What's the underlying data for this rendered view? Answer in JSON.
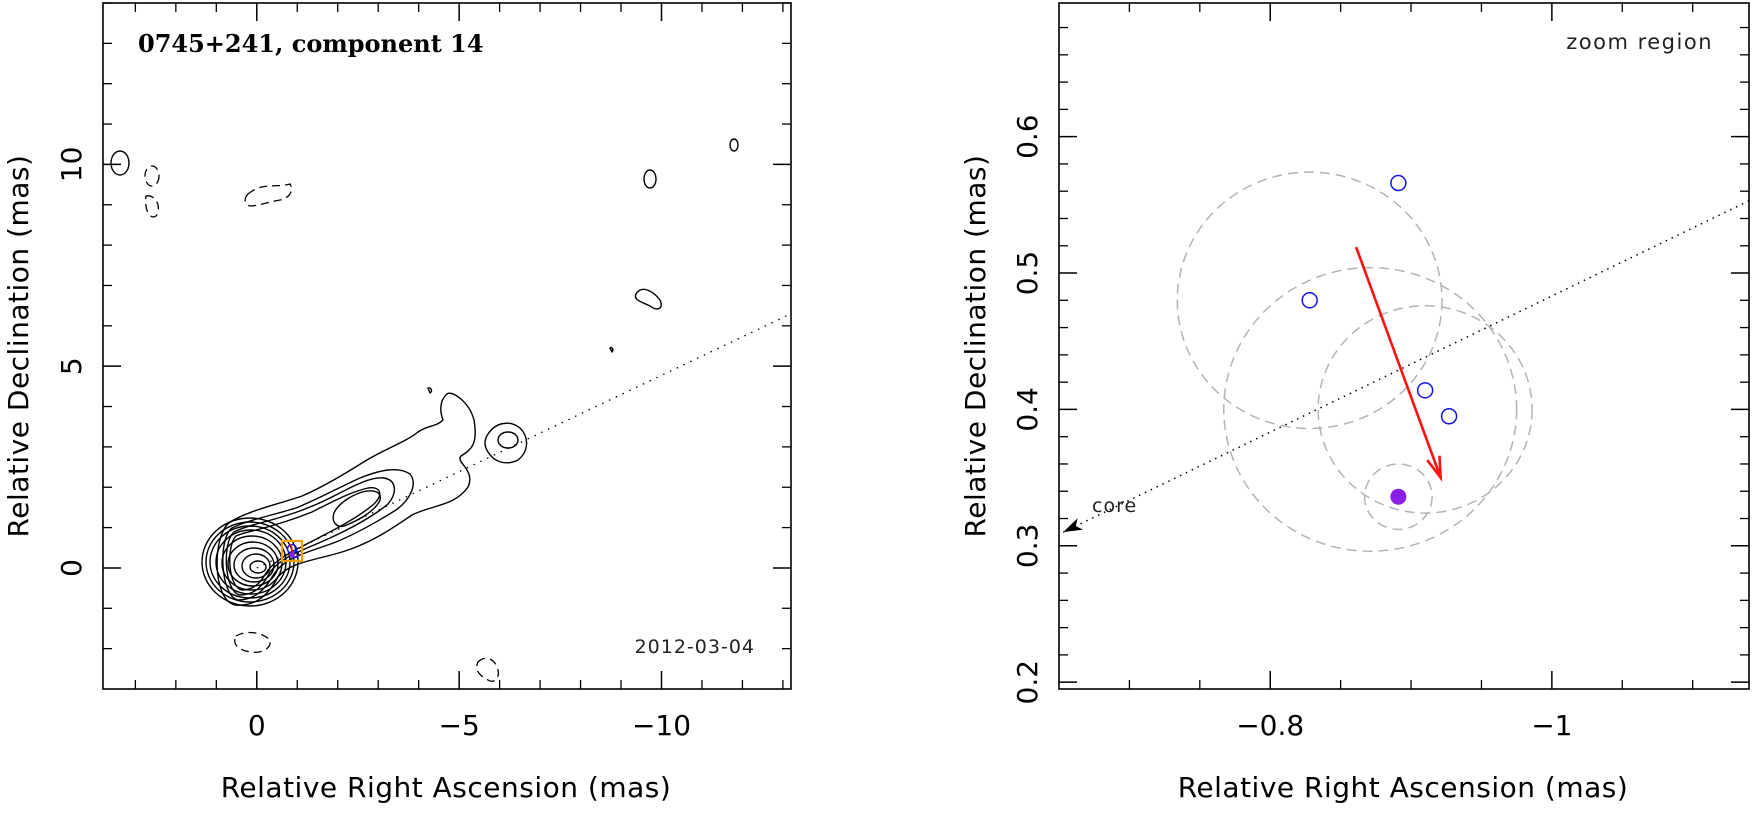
{
  "chart_data": [
    {
      "type": "contour",
      "title": "0745+241, component 14",
      "epoch": "2012-03-04",
      "xlabel": "Relative Right Ascension (mas)",
      "ylabel": "Relative Declination (mas)",
      "xlim": [
        3.8,
        -13.2
      ],
      "ylim": [
        -3.0,
        14.0
      ],
      "x_ticks": [
        0,
        -5,
        -10
      ],
      "x_tick_labels": [
        "0",
        "−5",
        "−10"
      ],
      "y_ticks": [
        0,
        5,
        10
      ],
      "y_tick_labels": [
        "0",
        "5",
        "10"
      ],
      "core": {
        "x": 0,
        "y": 0
      },
      "component_marker": {
        "x": -0.87,
        "y": 0.42
      },
      "jet_direction_line": {
        "from": [
          0,
          0
        ],
        "to": [
          -13.2,
          6.3
        ]
      },
      "contour_levels": 11
    },
    {
      "type": "scatter",
      "title": "zoom region",
      "xlabel": "Relative Right Ascension (mas)",
      "ylabel": "Relative Declination (mas)",
      "xlim": [
        -0.65,
        -1.14
      ],
      "ylim": [
        0.195,
        0.698
      ],
      "x_ticks": [
        -0.8,
        -1.0
      ],
      "x_tick_labels": [
        "−0.8",
        "−1"
      ],
      "y_ticks": [
        0.2,
        0.3,
        0.4,
        0.5,
        0.6
      ],
      "y_tick_labels": [
        "0.2",
        "0.3",
        "0.4",
        "0.5",
        "0.6"
      ],
      "positions": [
        {
          "x": -0.891,
          "y": 0.566
        },
        {
          "x": -0.828,
          "y": 0.48
        },
        {
          "x": -0.91,
          "y": 0.414
        },
        {
          "x": -0.927,
          "y": 0.395
        }
      ],
      "mean_position": {
        "x": -0.891,
        "y": 0.336
      },
      "uncertainty_circles": [
        {
          "cx": -0.828,
          "cy": 0.48,
          "r": 0.094
        },
        {
          "cx": -0.871,
          "cy": 0.4,
          "r": 0.104
        },
        {
          "cx": -0.91,
          "cy": 0.4,
          "r": 0.076
        },
        {
          "cx": -0.891,
          "cy": 0.336,
          "r": 0.024
        }
      ],
      "motion_vector": {
        "from": [
          -0.861,
          0.519
        ],
        "to": [
          -0.921,
          0.35
        ]
      },
      "core_direction": {
        "from": [
          -1.14,
          0.553
        ],
        "to": [
          -0.653,
          0.31
        ],
        "label": "core"
      },
      "colors": {
        "positions": "#1515e6",
        "mean": "#8a1ee6",
        "vector": "#ff1010",
        "circles": "#b4b4b4"
      }
    }
  ]
}
